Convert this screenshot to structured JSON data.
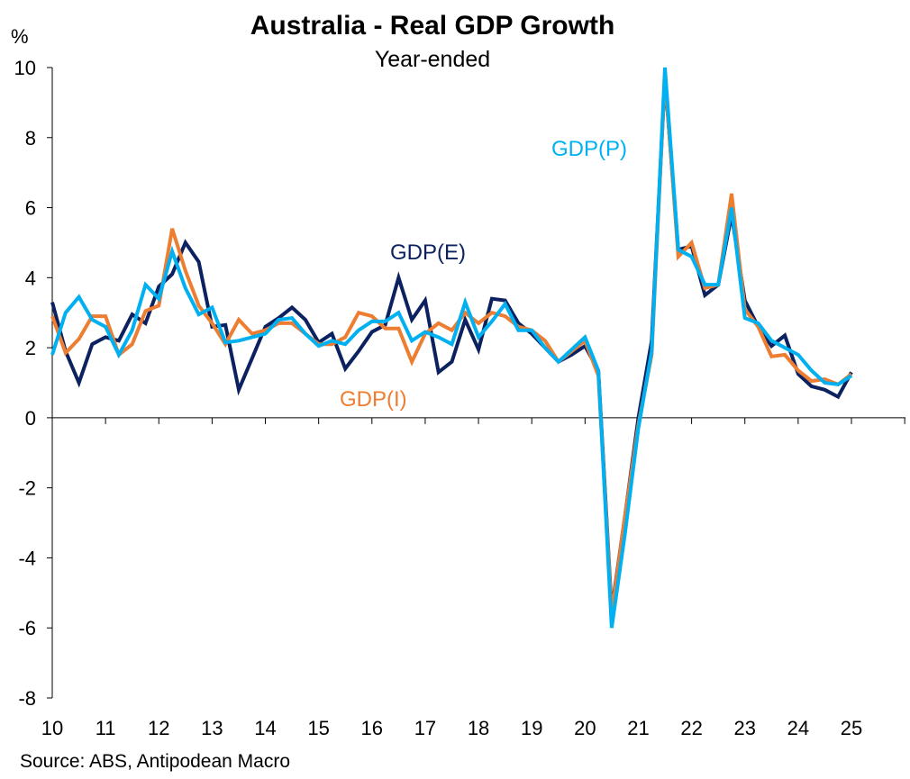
{
  "chart_data": {
    "type": "line",
    "title": "Australia - Real GDP Growth",
    "subtitle": "Year-ended",
    "ylabel": "%",
    "xlabel": "",
    "source": "Source: ABS, Antipodean Macro",
    "ylim": [
      -8,
      10
    ],
    "yticks": [
      -8,
      -6,
      -4,
      -2,
      0,
      2,
      4,
      6,
      8,
      10
    ],
    "xlim": [
      10,
      26
    ],
    "xtick_labels": [
      "10",
      "11",
      "12",
      "13",
      "14",
      "15",
      "16",
      "17",
      "18",
      "19",
      "20",
      "21",
      "22",
      "23",
      "24",
      "25"
    ],
    "x_start": 10,
    "x_step": 0.25,
    "grid": false,
    "series": [
      {
        "name": "GDP(E)",
        "color": "#0b2160",
        "values": [
          3.3,
          1.9,
          1.0,
          2.1,
          2.3,
          2.2,
          2.95,
          2.7,
          3.75,
          4.1,
          5.0,
          4.45,
          2.6,
          2.65,
          0.8,
          1.7,
          2.6,
          2.85,
          3.15,
          2.8,
          2.15,
          2.4,
          1.4,
          1.9,
          2.45,
          2.65,
          4.0,
          2.8,
          3.35,
          1.3,
          1.6,
          2.8,
          1.95,
          3.4,
          3.35,
          2.7,
          2.4,
          2.0,
          1.6,
          1.8,
          2.05,
          1.35,
          -5.5,
          -2.8,
          0.0,
          2.2,
          9.7,
          4.8,
          4.9,
          3.5,
          3.8,
          5.8,
          3.35,
          2.6,
          2.05,
          2.35,
          1.25,
          0.9,
          0.8,
          0.6,
          1.3
        ]
      },
      {
        "name": "GDP(I)",
        "color": "#ed7d31",
        "values": [
          2.9,
          1.85,
          2.25,
          2.9,
          2.9,
          1.8,
          2.1,
          3.05,
          3.2,
          5.4,
          4.2,
          3.2,
          2.7,
          2.1,
          2.8,
          2.4,
          2.5,
          2.7,
          2.7,
          2.4,
          2.1,
          2.1,
          2.3,
          3.0,
          2.9,
          2.55,
          2.55,
          1.6,
          2.4,
          2.7,
          2.5,
          3.0,
          2.7,
          3.0,
          2.9,
          2.6,
          2.5,
          2.2,
          1.6,
          1.9,
          2.2,
          1.2,
          -5.6,
          -2.8,
          -0.2,
          1.8,
          9.8,
          4.6,
          5.0,
          3.7,
          3.8,
          6.4,
          3.1,
          2.6,
          1.75,
          1.8,
          1.35,
          1.05,
          1.1,
          0.95,
          1.25
        ]
      },
      {
        "name": "GDP(P)",
        "color": "#00b0f0",
        "values": [
          1.8,
          3.0,
          3.45,
          2.8,
          2.6,
          1.8,
          2.5,
          3.8,
          3.4,
          4.75,
          3.7,
          2.95,
          3.15,
          2.15,
          2.2,
          2.3,
          2.4,
          2.8,
          2.85,
          2.4,
          2.05,
          2.2,
          2.1,
          2.5,
          2.75,
          2.75,
          3.0,
          2.2,
          2.45,
          2.3,
          2.1,
          3.3,
          2.3,
          2.75,
          3.25,
          2.5,
          2.5,
          2.0,
          1.6,
          1.95,
          2.3,
          1.35,
          -6.0,
          -3.3,
          -0.3,
          1.9,
          10.0,
          4.8,
          4.6,
          3.8,
          3.8,
          6.0,
          2.85,
          2.7,
          2.2,
          2.0,
          1.8,
          1.35,
          1.0,
          0.95,
          1.2
        ]
      }
    ],
    "annotations": [
      "GDP(E)",
      "GDP(I)",
      "GDP(P)"
    ]
  }
}
